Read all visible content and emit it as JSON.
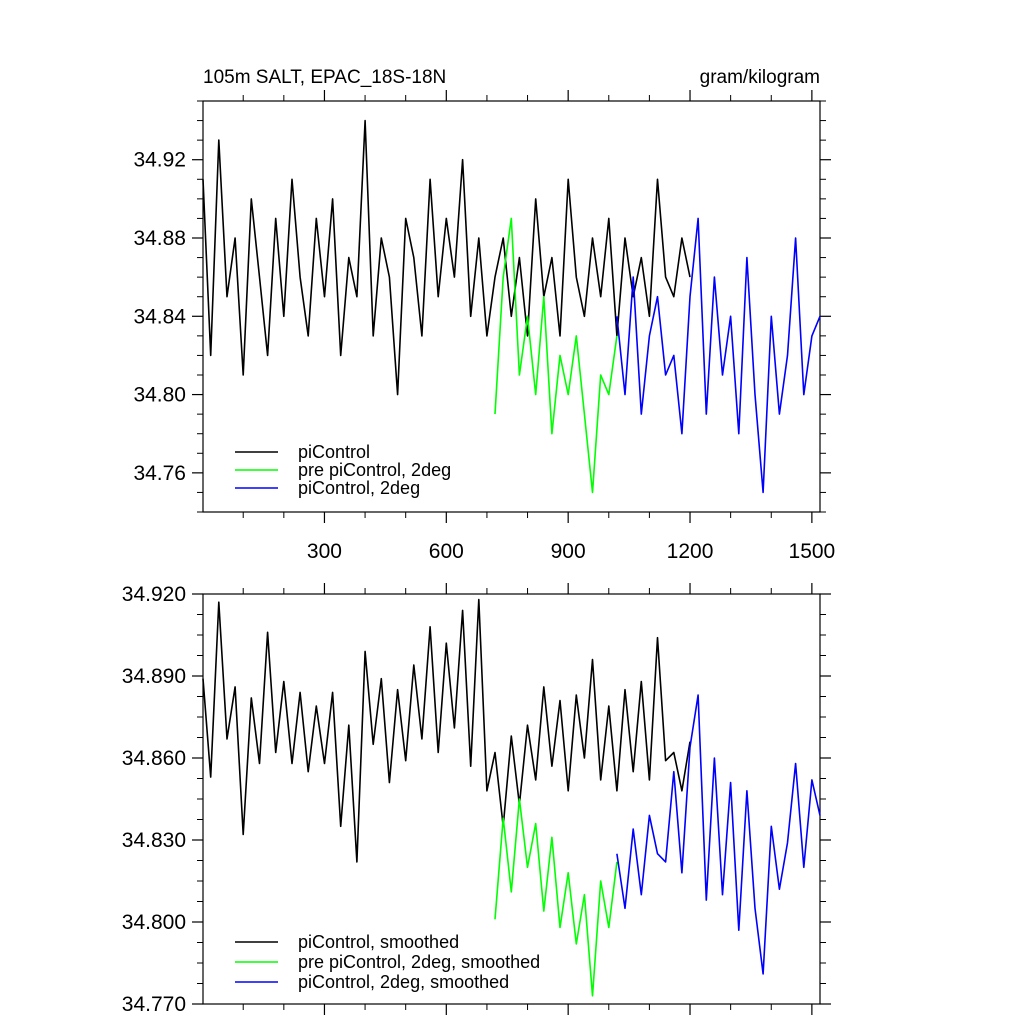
{
  "chart_data": [
    {
      "type": "line",
      "title": "105m SALT, EPAC_18S-18N",
      "units": "gram/kilogram",
      "xlim": [
        1,
        1520
      ],
      "ylim": [
        34.74,
        34.95
      ],
      "xticks": [
        300,
        600,
        900,
        1200,
        1500
      ],
      "xtick_labels": [
        "300",
        "600",
        "900",
        "1200",
        "1500"
      ],
      "yticks": [
        34.76,
        34.8,
        34.84,
        34.88,
        34.92
      ],
      "ytick_labels": [
        "34.76",
        "34.80",
        "34.84",
        "34.88",
        "34.92"
      ],
      "grid": false,
      "legend_position": "bottom-left",
      "series": [
        {
          "name": "piControl",
          "color": "#000000",
          "x": [
            1,
            20,
            40,
            60,
            80,
            100,
            120,
            140,
            160,
            180,
            200,
            220,
            240,
            260,
            280,
            300,
            320,
            340,
            360,
            380,
            400,
            420,
            440,
            460,
            480,
            500,
            520,
            540,
            560,
            580,
            600,
            620,
            640,
            660,
            680,
            700,
            720,
            740,
            760,
            780,
            800,
            820,
            840,
            860,
            880,
            900,
            920,
            940,
            960,
            980,
            1000,
            1020,
            1040,
            1060,
            1080,
            1100,
            1120,
            1140,
            1160,
            1180,
            1200
          ],
          "values": [
            34.91,
            34.82,
            34.93,
            34.85,
            34.88,
            34.81,
            34.9,
            34.86,
            34.82,
            34.89,
            34.84,
            34.91,
            34.86,
            34.83,
            34.89,
            34.85,
            34.9,
            34.82,
            34.87,
            34.85,
            34.94,
            34.83,
            34.88,
            34.86,
            34.8,
            34.89,
            34.87,
            34.83,
            34.91,
            34.85,
            34.89,
            34.86,
            34.92,
            34.84,
            34.88,
            34.83,
            34.86,
            34.88,
            34.84,
            34.87,
            34.83,
            34.9,
            34.85,
            34.87,
            34.83,
            34.91,
            34.86,
            34.84,
            34.88,
            34.85,
            34.89,
            34.83,
            34.88,
            34.85,
            34.87,
            34.84,
            34.91,
            34.86,
            34.85,
            34.88,
            34.86
          ]
        },
        {
          "name": "pre piControl, 2deg",
          "color": "#00ff00",
          "x": [
            720,
            740,
            760,
            780,
            800,
            820,
            840,
            860,
            880,
            900,
            920,
            940,
            960,
            980,
            1000,
            1020
          ],
          "values": [
            34.79,
            34.86,
            34.89,
            34.81,
            34.84,
            34.8,
            34.85,
            34.78,
            34.82,
            34.8,
            34.83,
            34.79,
            34.75,
            34.81,
            34.8,
            34.83
          ]
        },
        {
          "name": "piControl, 2deg",
          "color": "#0000ff",
          "x": [
            1020,
            1040,
            1060,
            1080,
            1100,
            1120,
            1140,
            1160,
            1180,
            1200,
            1220,
            1240,
            1260,
            1280,
            1300,
            1320,
            1340,
            1360,
            1380,
            1400,
            1420,
            1440,
            1460,
            1480,
            1500,
            1520
          ],
          "values": [
            34.84,
            34.8,
            34.86,
            34.79,
            34.83,
            34.85,
            34.81,
            34.82,
            34.78,
            34.85,
            34.89,
            34.79,
            34.86,
            34.81,
            34.84,
            34.78,
            34.87,
            34.8,
            34.75,
            34.84,
            34.79,
            34.82,
            34.88,
            34.8,
            34.83,
            34.84
          ]
        }
      ],
      "legend": {
        "entries": [
          "piControl",
          "pre piControl, 2deg",
          "piControl, 2deg"
        ]
      }
    },
    {
      "type": "line",
      "title": "",
      "xlim": [
        1,
        1520
      ],
      "ylim": [
        34.77,
        34.92
      ],
      "xticks": [
        300,
        600,
        900,
        1200,
        1500
      ],
      "yticks": [
        34.77,
        34.8,
        34.83,
        34.86,
        34.89,
        34.92
      ],
      "ytick_labels": [
        "34.770",
        "34.800",
        "34.830",
        "34.860",
        "34.890",
        "34.920"
      ],
      "grid": false,
      "legend_position": "bottom-left",
      "series": [
        {
          "name": "piControl, smoothed",
          "color": "#000000",
          "x": [
            1,
            20,
            40,
            60,
            80,
            100,
            120,
            140,
            160,
            180,
            200,
            220,
            240,
            260,
            280,
            300,
            320,
            340,
            360,
            380,
            400,
            420,
            440,
            460,
            480,
            500,
            520,
            540,
            560,
            580,
            600,
            620,
            640,
            660,
            680,
            700,
            720,
            740,
            760,
            780,
            800,
            820,
            840,
            860,
            880,
            900,
            920,
            940,
            960,
            980,
            1000,
            1020,
            1040,
            1060,
            1080,
            1100,
            1120,
            1140,
            1160,
            1180,
            1200
          ],
          "values": [
            34.889,
            34.853,
            34.917,
            34.867,
            34.886,
            34.832,
            34.882,
            34.858,
            34.906,
            34.862,
            34.888,
            34.858,
            34.884,
            34.855,
            34.879,
            34.858,
            34.884,
            34.835,
            34.872,
            34.822,
            34.899,
            34.865,
            34.889,
            34.851,
            34.885,
            34.859,
            34.894,
            34.867,
            34.908,
            34.862,
            34.902,
            34.871,
            34.914,
            34.857,
            34.918,
            34.848,
            34.862,
            34.835,
            34.868,
            34.843,
            34.872,
            34.852,
            34.886,
            34.857,
            34.881,
            34.848,
            34.883,
            34.86,
            34.896,
            34.852,
            34.879,
            34.848,
            34.885,
            34.855,
            34.888,
            34.852,
            34.904,
            34.859,
            34.862,
            34.848,
            34.866
          ]
        },
        {
          "name": "pre piControl, 2deg, smoothed",
          "color": "#00ff00",
          "x": [
            720,
            740,
            760,
            780,
            800,
            820,
            840,
            860,
            880,
            900,
            920,
            940,
            960,
            980,
            1000,
            1020
          ],
          "values": [
            34.801,
            34.838,
            34.811,
            34.845,
            34.82,
            34.836,
            34.804,
            34.831,
            34.798,
            34.818,
            34.792,
            34.81,
            34.773,
            34.815,
            34.798,
            34.822
          ]
        },
        {
          "name": "piControl, 2deg, smoothed",
          "color": "#0000ff",
          "x": [
            1020,
            1040,
            1060,
            1080,
            1100,
            1120,
            1140,
            1160,
            1180,
            1200,
            1220,
            1240,
            1260,
            1280,
            1300,
            1320,
            1340,
            1360,
            1380,
            1400,
            1420,
            1440,
            1460,
            1480,
            1500,
            1520
          ],
          "values": [
            34.825,
            34.805,
            34.834,
            34.81,
            34.839,
            34.825,
            34.822,
            34.855,
            34.818,
            34.864,
            34.883,
            34.808,
            34.86,
            34.81,
            34.851,
            34.797,
            34.848,
            34.805,
            34.781,
            34.835,
            34.812,
            34.829,
            34.858,
            34.82,
            34.852,
            34.839
          ]
        }
      ],
      "legend": {
        "entries": [
          "piControl, smoothed",
          "pre piControl, 2deg, smoothed",
          "piControl, 2deg, smoothed"
        ]
      }
    }
  ]
}
